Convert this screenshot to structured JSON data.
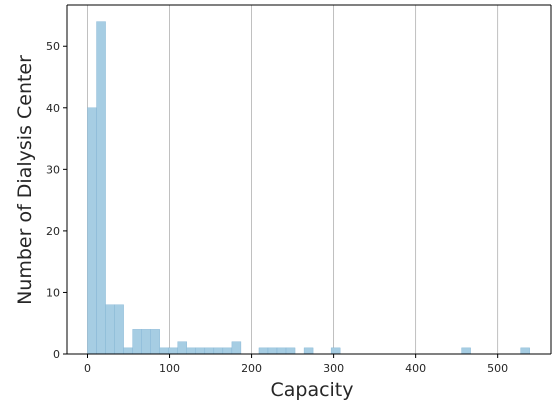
{
  "chart_data": {
    "type": "bar",
    "title": "",
    "xlabel": "Capacity",
    "ylabel": "Number of Dialysis Center",
    "xlim": [
      -25,
      565
    ],
    "ylim": [
      0,
      56.7
    ],
    "x_ticks": [
      0,
      100,
      200,
      300,
      400,
      500
    ],
    "y_ticks": [
      0,
      10,
      20,
      30,
      40,
      50
    ],
    "grid": "vertical",
    "bar_color": "#a6cde3",
    "bar_edge_color": "#7fb2d3",
    "bin_width": 11,
    "bins": [
      {
        "x_start": 0,
        "count": 40
      },
      {
        "x_start": 11,
        "count": 54
      },
      {
        "x_start": 22,
        "count": 8
      },
      {
        "x_start": 33,
        "count": 8
      },
      {
        "x_start": 44,
        "count": 1
      },
      {
        "x_start": 55,
        "count": 4
      },
      {
        "x_start": 66,
        "count": 4
      },
      {
        "x_start": 77,
        "count": 4
      },
      {
        "x_start": 88,
        "count": 1
      },
      {
        "x_start": 99,
        "count": 1
      },
      {
        "x_start": 110,
        "count": 2
      },
      {
        "x_start": 121,
        "count": 1
      },
      {
        "x_start": 132,
        "count": 1
      },
      {
        "x_start": 143,
        "count": 1
      },
      {
        "x_start": 154,
        "count": 1
      },
      {
        "x_start": 165,
        "count": 1
      },
      {
        "x_start": 176,
        "count": 2
      },
      {
        "x_start": 209,
        "count": 1
      },
      {
        "x_start": 220,
        "count": 1
      },
      {
        "x_start": 231,
        "count": 1
      },
      {
        "x_start": 242,
        "count": 1
      },
      {
        "x_start": 264,
        "count": 1
      },
      {
        "x_start": 297,
        "count": 1
      },
      {
        "x_start": 456,
        "count": 1
      },
      {
        "x_start": 528,
        "count": 1
      }
    ]
  }
}
